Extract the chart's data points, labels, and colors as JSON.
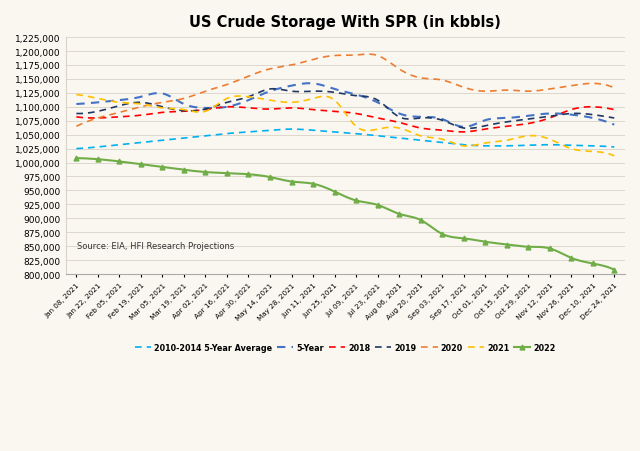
{
  "title": "US Crude Storage With SPR (in kbbls)",
  "source_text": "Source: EIA, HFI Research Projections",
  "background_color": "#faf7f0",
  "x_labels": [
    "Jan 08, 2021",
    "Jan 22, 2021",
    "Feb 05, 2021",
    "Feb 19, 2021",
    "Mar 05, 2021",
    "Mar 19, 2021",
    "Apr 02, 2021",
    "Apr 16, 2021",
    "Apr 30, 2021",
    "May 14, 2021",
    "May 28, 2021",
    "Jun 11, 2021",
    "Jun 25, 2021",
    "Jul 09, 2021",
    "Jul 23, 2021",
    "Aug 06, 2021",
    "Aug 20, 2021",
    "Sep 03, 2021",
    "Sep 17, 2021",
    "Oct 01, 2021",
    "Oct 15, 2021",
    "Oct 29, 2021",
    "Nov 12, 2021",
    "Nov 26, 2021",
    "Dec 10, 2021",
    "Dec 24, 2021"
  ],
  "avg_2010_2014": [
    1025000,
    1028000,
    1032000,
    1036000,
    1040000,
    1044000,
    1048000,
    1052000,
    1055000,
    1058000,
    1060000,
    1058000,
    1055000,
    1052000,
    1048000,
    1044000,
    1040000,
    1036000,
    1032000,
    1030000,
    1030000,
    1031000,
    1032000,
    1031000,
    1030000,
    1028000
  ],
  "yr_5": [
    1105000,
    1108000,
    1112000,
    1118000,
    1124000,
    1105000,
    1098000,
    1100000,
    1112000,
    1128000,
    1138000,
    1142000,
    1132000,
    1122000,
    1108000,
    1088000,
    1082000,
    1078000,
    1064000,
    1076000,
    1080000,
    1084000,
    1088000,
    1086000,
    1080000,
    1068000
  ],
  "yr_2018": [
    1082000,
    1080000,
    1082000,
    1085000,
    1090000,
    1092000,
    1095000,
    1100000,
    1098000,
    1096000,
    1098000,
    1095000,
    1092000,
    1088000,
    1080000,
    1072000,
    1062000,
    1058000,
    1055000,
    1060000,
    1065000,
    1070000,
    1080000,
    1095000,
    1100000,
    1095000
  ],
  "yr_2019": [
    1088000,
    1092000,
    1102000,
    1108000,
    1100000,
    1093000,
    1096000,
    1108000,
    1118000,
    1132000,
    1128000,
    1128000,
    1126000,
    1120000,
    1112000,
    1082000,
    1080000,
    1076000,
    1062000,
    1066000,
    1073000,
    1078000,
    1083000,
    1088000,
    1086000,
    1080000
  ],
  "yr_2020": [
    1065000,
    1080000,
    1090000,
    1100000,
    1108000,
    1115000,
    1128000,
    1140000,
    1155000,
    1168000,
    1175000,
    1185000,
    1192000,
    1193000,
    1192000,
    1168000,
    1152000,
    1148000,
    1135000,
    1128000,
    1130000,
    1128000,
    1132000,
    1138000,
    1142000,
    1134000
  ],
  "yr_2021": [
    1122000,
    1115000,
    1108000,
    1105000,
    1098000,
    1095000,
    1092000,
    1115000,
    1118000,
    1112000,
    1108000,
    1115000,
    1112000,
    1065000,
    1060000,
    1062000,
    1048000,
    1042000,
    1030000,
    1035000,
    1040000,
    1048000,
    1042000,
    1025000,
    1020000,
    1012000
  ],
  "yr_2022": [
    1008000,
    1006000,
    1002000,
    997000,
    992000,
    987000,
    983000,
    981000,
    979000,
    974000,
    966000,
    962000,
    948000,
    932000,
    924000,
    908000,
    897000,
    872000,
    864000,
    858000,
    853000,
    849000,
    846000,
    829000,
    819000,
    808000
  ],
  "colors": {
    "avg_2010_2014": "#00b0f0",
    "yr_5": "#4472c4",
    "yr_2018": "#ff0000",
    "yr_2019": "#1f3864",
    "yr_2020": "#ed7d31",
    "yr_2021": "#ffc000",
    "yr_2022": "#70ad47"
  },
  "ylim": [
    800000,
    1225000
  ],
  "yticks": [
    800000,
    825000,
    850000,
    875000,
    900000,
    925000,
    950000,
    975000,
    1000000,
    1025000,
    1050000,
    1075000,
    1100000,
    1125000,
    1150000,
    1175000,
    1200000,
    1225000
  ]
}
